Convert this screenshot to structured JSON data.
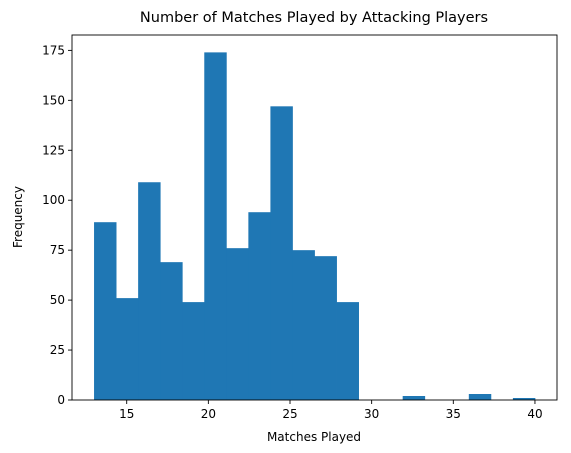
{
  "chart_data": {
    "type": "bar",
    "title": "Number of Matches Played by Attacking Players",
    "xlabel": "Matches Played",
    "ylabel": "Frequency",
    "bin_edges": [
      13,
      14.35,
      15.7,
      17.05,
      18.4,
      19.75,
      21.1,
      22.45,
      23.8,
      25.15,
      26.5,
      27.85,
      29.2,
      30.55,
      31.9,
      33.25,
      34.6,
      35.95,
      37.3,
      38.65,
      40
    ],
    "values": [
      89,
      51,
      109,
      69,
      49,
      174,
      76,
      94,
      147,
      75,
      72,
      49,
      0,
      0,
      2,
      0,
      0,
      3,
      0,
      1
    ],
    "xlim": [
      11.65,
      41.35
    ],
    "ylim": [
      0,
      182.7
    ],
    "xticks": [
      15,
      20,
      25,
      30,
      35,
      40
    ],
    "yticks": [
      0,
      25,
      50,
      75,
      100,
      125,
      150,
      175
    ],
    "bar_color": "#1f77b4",
    "grid": false
  }
}
